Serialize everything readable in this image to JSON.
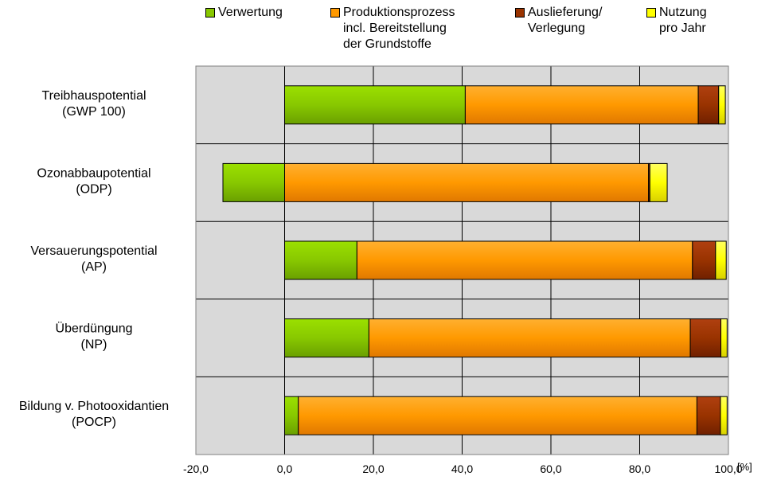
{
  "chart_data": {
    "type": "bar",
    "orientation": "horizontal",
    "stacked": true,
    "categories": [
      "Treibhauspotential\n(GWP 100)",
      "Ozonabbaupotential\n(ODP)",
      "Versauerungspotential\n(AP)",
      "Überdüngung\n(NP)",
      "Bildung v. Photooxidantien\n(POCP)"
    ],
    "series": [
      {
        "name": "Verwertung",
        "color": "#88c800",
        "values": [
          40.7,
          -13.9,
          16.3,
          19.0,
          3.1
        ]
      },
      {
        "name": "Produktionsprozess\nincl. Bereitstellung\nder Grundstoffe",
        "color": "#ff9900",
        "values": [
          52.5,
          82.0,
          75.6,
          72.4,
          89.8
        ]
      },
      {
        "name": "Auslieferung/\nVerlegung",
        "color": "#993300",
        "values": [
          4.6,
          0.3,
          5.2,
          6.9,
          5.3
        ]
      },
      {
        "name": "Nutzung\npro Jahr",
        "color": "#ffff00",
        "values": [
          1.5,
          3.9,
          2.4,
          1.4,
          1.5
        ]
      }
    ],
    "xlim": [
      -20,
      100
    ],
    "xticks": [
      "-20,0",
      "0,0",
      "20,0",
      "40,0",
      "60,0",
      "80,0",
      "100,0"
    ],
    "xunit": "[%]",
    "grid": true,
    "legend_position": "top",
    "plot_background": "#d9d9d9"
  }
}
